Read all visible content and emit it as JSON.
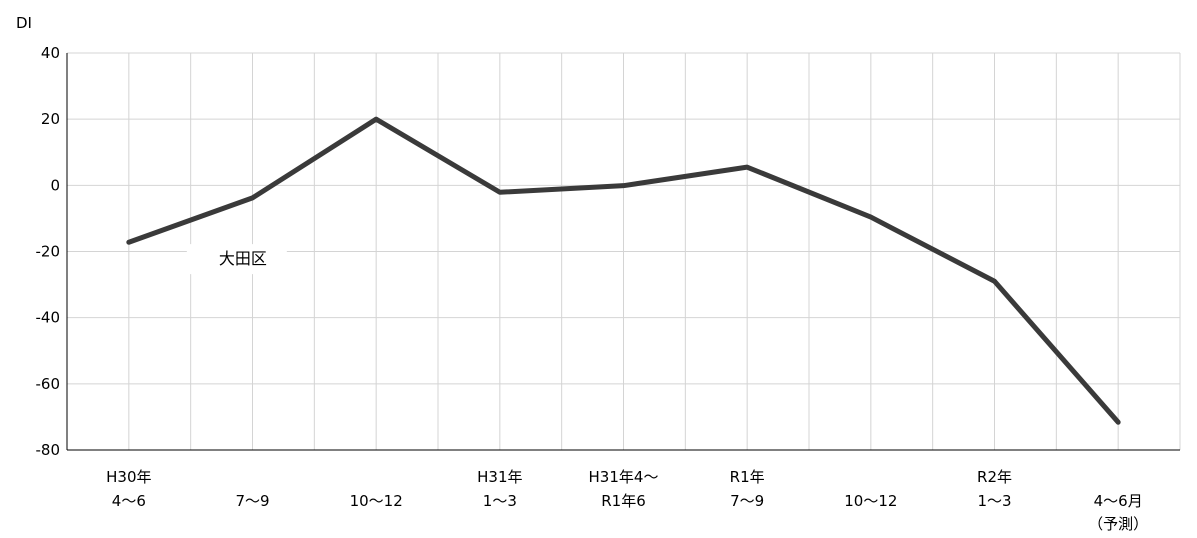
{
  "chart_data": {
    "type": "line",
    "ylabel": "DI",
    "ylim": [
      -80,
      40
    ],
    "yticks": [
      40,
      20,
      0,
      -20,
      -40,
      -60,
      -80
    ],
    "ytick_labels": [
      "40",
      "20",
      "0",
      "-20",
      "-40",
      "-60",
      "-80"
    ],
    "categories": [
      [
        "H30年",
        "4～6"
      ],
      [
        "7～9"
      ],
      [
        "10～12"
      ],
      [
        "H31年",
        "1～3"
      ],
      [
        "H31年4～",
        "R1年6"
      ],
      [
        "R1年",
        "7～9"
      ],
      [
        "10～12"
      ],
      [
        "R2年",
        "1～3"
      ],
      [
        "4～6月",
        "（予測）"
      ]
    ],
    "series": [
      {
        "name": "大田区",
        "values": [
          -17.2,
          -3.8,
          20.0,
          -2.1,
          -0.1,
          5.5,
          -9.6,
          -29.0,
          -71.6
        ],
        "color": "#3a3a3a"
      }
    ],
    "grid": true,
    "grid_color": "#d4d4d4",
    "axis_color": "#000000"
  }
}
